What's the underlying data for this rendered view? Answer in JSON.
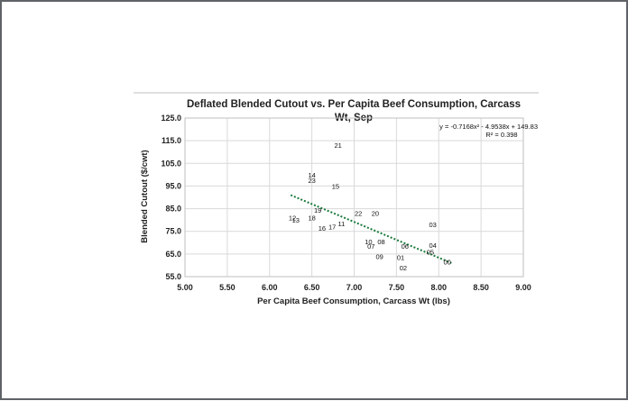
{
  "chart_data": {
    "type": "scatter",
    "title_line1": "Deflated Blended Cutout vs. Per Capita Beef Consumption, Carcass",
    "title_line2": "Wt, Sep",
    "xlabel": "Per Capita Beef Consumption, Carcass Wt (lbs)",
    "ylabel": "Blended Cutout ($/cwt)",
    "xlim": [
      5.0,
      9.0
    ],
    "ylim": [
      55.0,
      125.0
    ],
    "x_ticks": [
      "5.00",
      "5.50",
      "6.00",
      "6.50",
      "7.00",
      "7.50",
      "8.00",
      "8.50",
      "9.00"
    ],
    "y_ticks": [
      "125.0",
      "115.0",
      "105.0",
      "95.0",
      "85.0",
      "75.0",
      "65.0",
      "55.0"
    ],
    "grid": true,
    "points": [
      {
        "label": "00",
        "x": 8.1,
        "y": 61.5
      },
      {
        "label": "01",
        "x": 7.55,
        "y": 63.5
      },
      {
        "label": "02",
        "x": 7.58,
        "y": 59.0
      },
      {
        "label": "03",
        "x": 7.93,
        "y": 78.0
      },
      {
        "label": "04",
        "x": 7.93,
        "y": 69.0
      },
      {
        "label": "05",
        "x": 7.9,
        "y": 66.0
      },
      {
        "label": "06",
        "x": 7.6,
        "y": 68.5
      },
      {
        "label": "07",
        "x": 7.2,
        "y": 68.5
      },
      {
        "label": "08",
        "x": 7.32,
        "y": 70.5
      },
      {
        "label": "09",
        "x": 7.3,
        "y": 64.0
      },
      {
        "label": "10",
        "x": 7.17,
        "y": 70.5
      },
      {
        "label": "11",
        "x": 6.85,
        "y": 78.5
      },
      {
        "label": "12",
        "x": 6.27,
        "y": 81.0
      },
      {
        "label": "13",
        "x": 6.31,
        "y": 80.0
      },
      {
        "label": "14",
        "x": 6.5,
        "y": 100.0
      },
      {
        "label": "15",
        "x": 6.78,
        "y": 95.0
      },
      {
        "label": "16",
        "x": 6.62,
        "y": 76.5
      },
      {
        "label": "17",
        "x": 6.74,
        "y": 77.0
      },
      {
        "label": "18",
        "x": 6.5,
        "y": 81.0
      },
      {
        "label": "19",
        "x": 6.57,
        "y": 84.5
      },
      {
        "label": "21",
        "x": 6.81,
        "y": 113.0
      },
      {
        "label": "22",
        "x": 7.05,
        "y": 83.0
      },
      {
        "label": "20",
        "x": 7.25,
        "y": 83.0
      },
      {
        "label": "23",
        "x": 6.5,
        "y": 97.5
      }
    ],
    "highlight": {
      "label": "23",
      "color": "#cc0000"
    },
    "trendline": {
      "equation": "y = -0.7168x² - 4.9538x + 149.83",
      "r2": "R² = 0.398",
      "x_start": 6.25,
      "x_end": 8.15,
      "color": "#1a7a3a"
    },
    "colors": {
      "grid": "#d9d9d9",
      "plot_border": "#bfbfbf",
      "point_label": "#111111",
      "frame": "#5f6368"
    }
  }
}
